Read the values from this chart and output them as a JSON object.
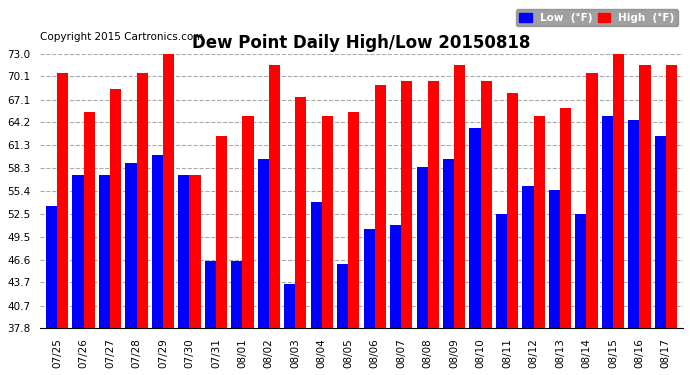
{
  "title": "Dew Point Daily High/Low 20150818",
  "copyright": "Copyright 2015 Cartronics.com",
  "dates": [
    "07/25",
    "07/26",
    "07/27",
    "07/28",
    "07/29",
    "07/30",
    "07/31",
    "08/01",
    "08/02",
    "08/03",
    "08/04",
    "08/05",
    "08/06",
    "08/07",
    "08/08",
    "08/09",
    "08/10",
    "08/11",
    "08/12",
    "08/13",
    "08/14",
    "08/15",
    "08/16",
    "08/17"
  ],
  "high": [
    70.5,
    65.5,
    68.5,
    70.5,
    73.5,
    57.5,
    62.5,
    65.0,
    71.5,
    67.5,
    65.0,
    65.5,
    69.0,
    69.5,
    69.5,
    71.5,
    69.5,
    68.0,
    65.0,
    66.0,
    70.5,
    73.0,
    71.5,
    71.5
  ],
  "low": [
    53.5,
    57.5,
    57.5,
    59.0,
    60.0,
    57.5,
    46.5,
    46.5,
    59.5,
    43.5,
    54.0,
    46.0,
    50.5,
    51.0,
    58.5,
    59.5,
    63.5,
    52.5,
    56.0,
    55.5,
    52.5,
    65.0,
    64.5,
    62.5
  ],
  "ylim_min": 37.8,
  "ylim_max": 73.0,
  "yticks": [
    37.8,
    40.7,
    43.7,
    46.6,
    49.5,
    52.5,
    55.4,
    58.3,
    61.3,
    64.2,
    67.1,
    70.1,
    73.0
  ],
  "bar_width": 0.42,
  "high_color": "#FF0000",
  "low_color": "#0000FF",
  "bg_color": "#FFFFFF",
  "grid_color": "#AAAAAA",
  "title_fontsize": 12,
  "copyright_fontsize": 7.5
}
